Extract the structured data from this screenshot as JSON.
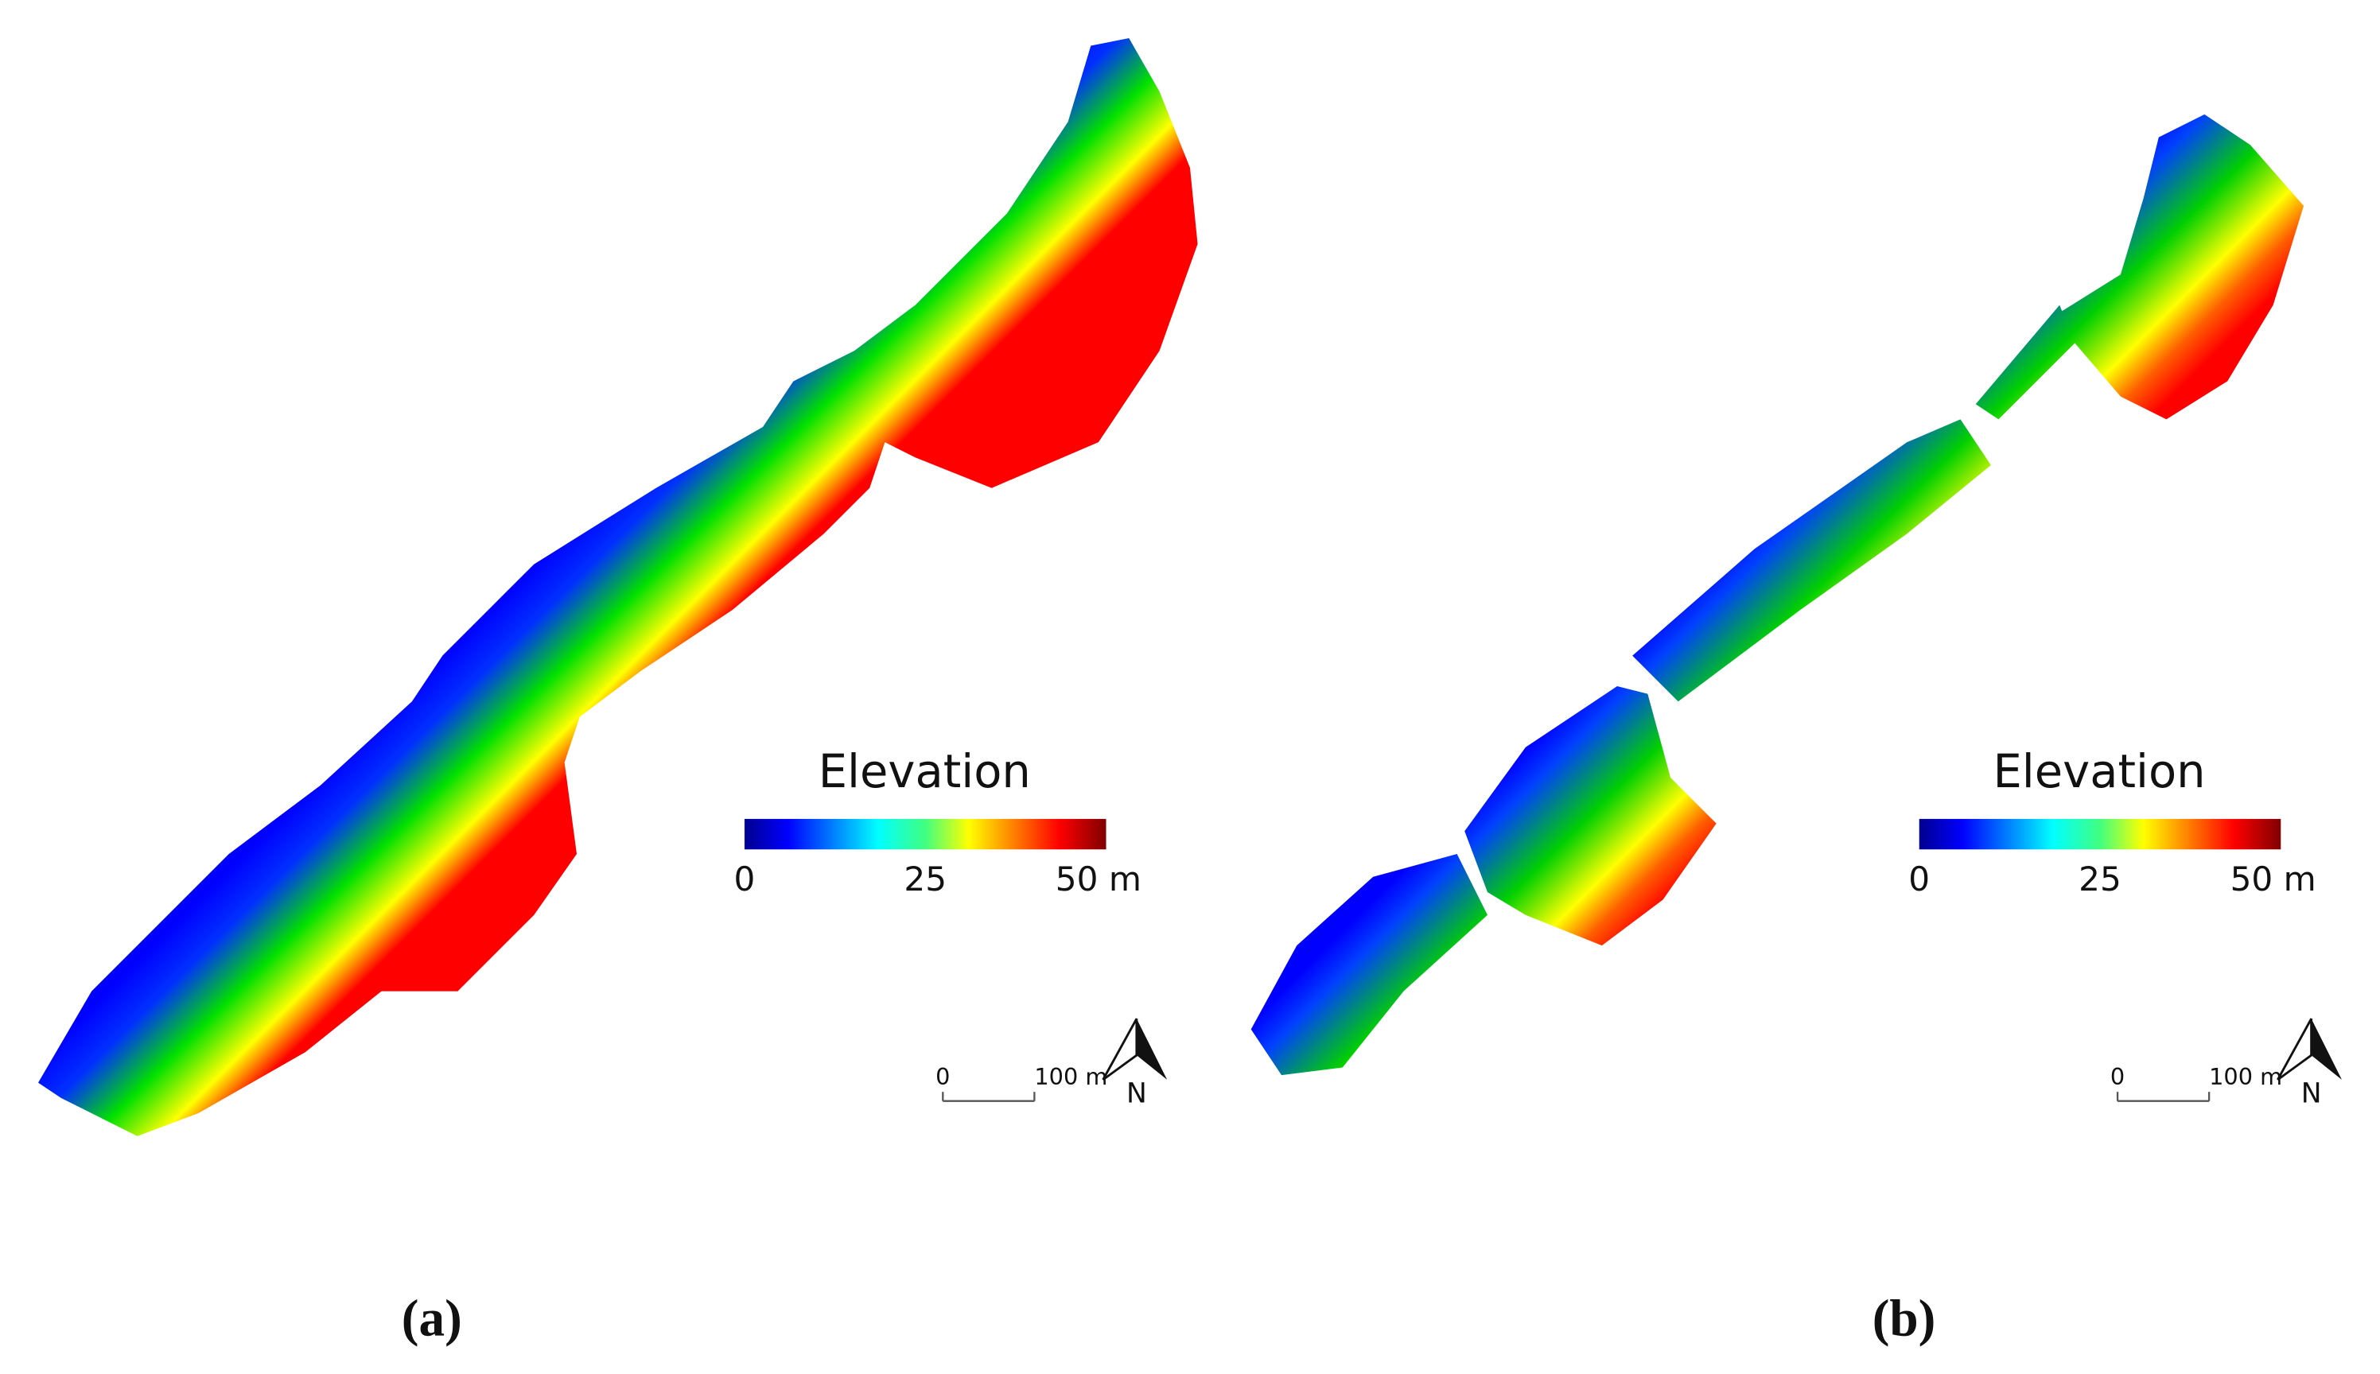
{
  "panels": [
    {
      "label": "(a)",
      "legend": {
        "title": "Elevation",
        "ticks": [
          0,
          25,
          {
            "value": 50,
            "label": "50 m"
          }
        ]
      },
      "scale_bar": {
        "ticks": [
          0,
          {
            "value": 100,
            "label": "100 m"
          }
        ]
      },
      "north": "N"
    },
    {
      "label": "(b)",
      "legend": {
        "title": "Elevation",
        "ticks": [
          0,
          25,
          {
            "value": 50,
            "label": "50 m"
          }
        ]
      },
      "scale_bar": {
        "ticks": [
          0,
          {
            "value": 100,
            "label": "100 m"
          }
        ]
      },
      "north": "N"
    }
  ]
}
